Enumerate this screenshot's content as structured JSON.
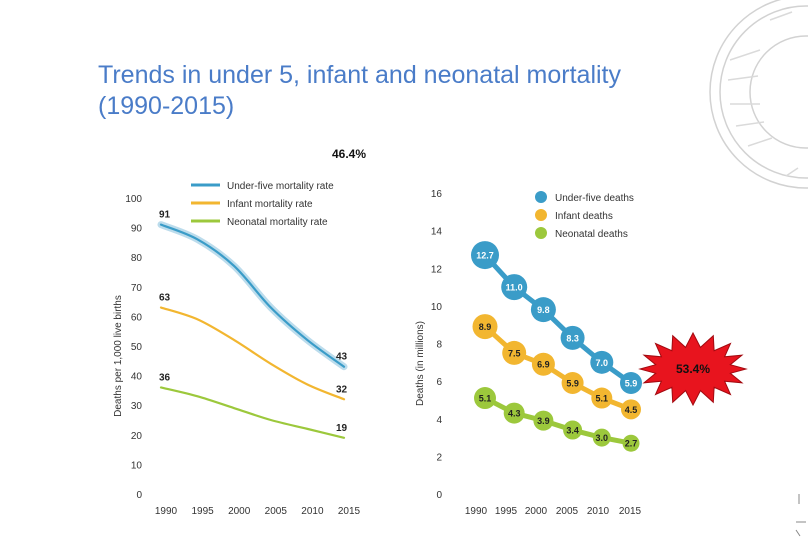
{
  "slide": {
    "title_line1": "Trends in under 5, infant and neonatal mortality",
    "title_line2": "(1990-2015)",
    "top_annotation": "46.4%",
    "burst_annotation": "53.4%",
    "colors": {
      "title": "#4a7cc8",
      "under5": "#3a9cc8",
      "infant": "#f2b630",
      "neonatal": "#9cc83c",
      "burst": "#e8141e"
    }
  },
  "chart_data": [
    {
      "type": "line",
      "title": "",
      "xlabel": "",
      "ylabel": "Deaths per 1,000 live births",
      "x": [
        1990,
        1995,
        2000,
        2005,
        2010,
        2015
      ],
      "x_tick_labels": [
        "1990",
        "1995",
        "2000",
        "2005",
        "2010",
        "2015"
      ],
      "y_ticks": [
        0,
        10,
        20,
        30,
        40,
        50,
        60,
        70,
        80,
        90,
        100
      ],
      "y_tick_labels": [
        "0",
        "10",
        "20",
        "30",
        "40",
        "50",
        "60",
        "70",
        "80",
        "90",
        "100"
      ],
      "ylim": [
        0,
        100
      ],
      "xlim": [
        1990,
        2015
      ],
      "legend_position": "top",
      "series": [
        {
          "name": "Under-five mortality rate",
          "key": "under5",
          "values": [
            91,
            86,
            77,
            63,
            52,
            43
          ],
          "start_label": "91",
          "end_label": "43"
        },
        {
          "name": "Infant mortality rate",
          "key": "infant",
          "values": [
            63,
            59,
            52,
            44,
            37,
            32
          ],
          "start_label": "63",
          "end_label": "32"
        },
        {
          "name": "Neonatal mortality rate",
          "key": "neonatal",
          "values": [
            36,
            33,
            29,
            25,
            22,
            19
          ],
          "start_label": "36",
          "end_label": "19"
        }
      ]
    },
    {
      "type": "line",
      "title": "",
      "xlabel": "",
      "ylabel": "Deaths (in millions)",
      "x": [
        1990,
        1995,
        2000,
        2005,
        2010,
        2015
      ],
      "x_tick_labels": [
        "1990",
        "1995",
        "2000",
        "2005",
        "2010",
        "2015"
      ],
      "y_ticks": [
        0,
        2,
        4,
        6,
        8,
        10,
        12,
        14,
        16
      ],
      "y_tick_labels": [
        "0",
        "2",
        "4",
        "6",
        "8",
        "10",
        "12",
        "14",
        "16"
      ],
      "ylim": [
        0,
        16
      ],
      "xlim": [
        1990,
        2015
      ],
      "legend_position": "top",
      "series": [
        {
          "name": "Under-five deaths",
          "key": "under5",
          "values": [
            12.7,
            11.0,
            9.8,
            8.3,
            7.0,
            5.9
          ],
          "labels": [
            "12.7",
            "11.0",
            "9.8",
            "8.3",
            "7.0",
            "5.9"
          ]
        },
        {
          "name": "Infant deaths",
          "key": "infant",
          "values": [
            8.9,
            7.5,
            6.9,
            5.9,
            5.1,
            4.5
          ],
          "labels": [
            "8.9",
            "7.5",
            "6.9",
            "5.9",
            "5.1",
            "4.5"
          ]
        },
        {
          "name": "Neonatal deaths",
          "key": "neonatal",
          "values": [
            5.1,
            4.3,
            3.9,
            3.4,
            3.0,
            2.7
          ],
          "labels": [
            "5.1",
            "4.3",
            "3.9",
            "3.4",
            "3.0",
            "2.7"
          ]
        }
      ]
    }
  ]
}
